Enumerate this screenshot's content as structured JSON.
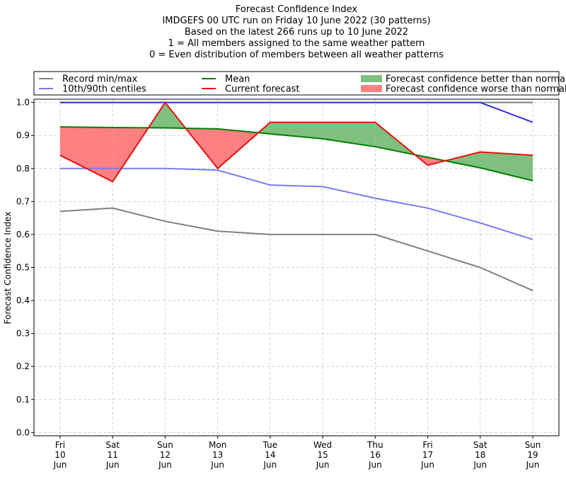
{
  "chart_data": {
    "type": "line",
    "title_lines": [
      "Forecast Confidence Index",
      "IMDGEFS 00 UTC run on Friday 10 June 2022 (30 patterns)",
      "Based on the latest 266 runs up to 10 June 2022",
      "1 = All members assigned to the same weather pattern",
      "0 = Even distribution of members between all weather patterns"
    ],
    "ylabel": "Forecast Confidence Index",
    "ylim": [
      -0.01,
      1.01
    ],
    "yticks": [
      "0.0",
      "0.1",
      "0.2",
      "0.3",
      "0.4",
      "0.5",
      "0.6",
      "0.7",
      "0.8",
      "0.9",
      "1.0"
    ],
    "grid": true,
    "categories": [
      [
        "Fri",
        "10",
        "Jun"
      ],
      [
        "Sat",
        "11",
        "Jun"
      ],
      [
        "Sun",
        "12",
        "Jun"
      ],
      [
        "Mon",
        "13",
        "Jun"
      ],
      [
        "Tue",
        "14",
        "Jun"
      ],
      [
        "Wed",
        "15",
        "Jun"
      ],
      [
        "Thu",
        "16",
        "Jun"
      ],
      [
        "Fri",
        "17",
        "Jun"
      ],
      [
        "Sat",
        "18",
        "Jun"
      ],
      [
        "Sun",
        "19",
        "Jun"
      ]
    ],
    "series": {
      "record_min": [
        0.67,
        0.68,
        0.64,
        0.61,
        0.6,
        0.6,
        0.6,
        0.55,
        0.5,
        0.43
      ],
      "record_max": [
        1.0,
        1.0,
        1.0,
        1.0,
        1.0,
        1.0,
        1.0,
        1.0,
        1.0,
        1.0
      ],
      "p10": [
        0.8,
        0.8,
        0.8,
        0.795,
        0.75,
        0.745,
        0.71,
        0.68,
        0.635,
        0.585
      ],
      "p90": [
        1.0,
        1.0,
        1.0,
        1.0,
        1.0,
        1.0,
        1.0,
        1.0,
        1.0,
        0.94
      ],
      "mean": [
        0.926,
        0.924,
        0.923,
        0.92,
        0.905,
        0.89,
        0.866,
        0.834,
        0.802,
        0.763
      ],
      "current": [
        0.84,
        0.76,
        1.0,
        0.8,
        0.94,
        0.94,
        0.94,
        0.81,
        0.85,
        0.84
      ]
    },
    "legend": {
      "placement": "top",
      "entries": [
        {
          "label": "Record min/max",
          "kind": "line",
          "color": "#808080"
        },
        {
          "label": "10th/90th centiles",
          "kind": "line",
          "color": "#7b7bf5"
        },
        {
          "label": "Mean",
          "kind": "line",
          "color": "#008000"
        },
        {
          "label": "Current forecast",
          "kind": "line",
          "color": "#e81010"
        },
        {
          "label": "Forecast confidence better than normal",
          "kind": "patch",
          "color": "#7fbf7f"
        },
        {
          "label": "Forecast confidence worse than normal",
          "kind": "patch",
          "color": "#ff8080"
        }
      ]
    },
    "colors": {
      "record": "#808080",
      "centile": "#7b7bf5",
      "p90": "#3333e0",
      "mean": "#008000",
      "current": "#e81010",
      "better_fill": "#7fbf7f",
      "worse_fill": "#ff8080"
    }
  }
}
